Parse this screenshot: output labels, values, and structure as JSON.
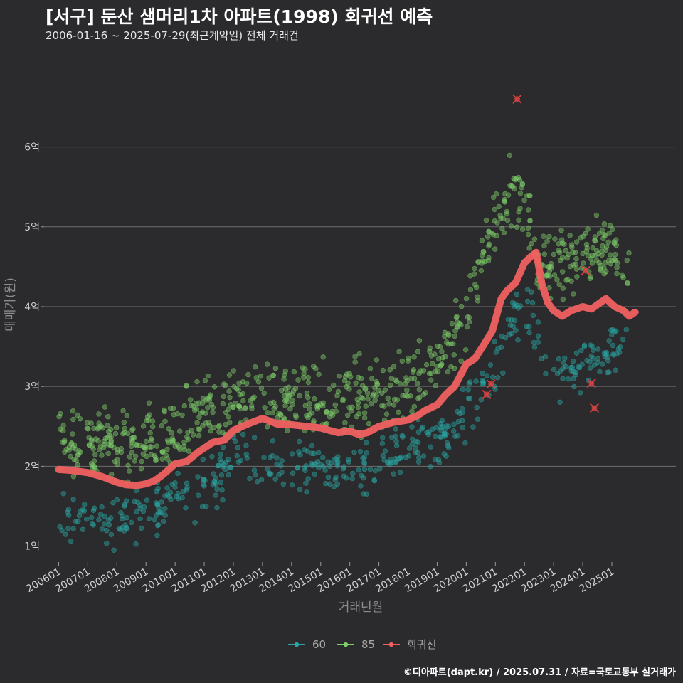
{
  "title": "[서구] 둔산 샘머리1차 아파트(1998) 회귀선 예측",
  "subtitle": "2006-01-16 ~ 2025-07-29(최근계약일) 전체 거래건",
  "caption": "©디아파트(dapt.kr) / 2025.07.31 / 자료=국토교통부 실거래가",
  "chart_data": {
    "type": "scatter",
    "title": "[서구] 둔산 샘머리1차 아파트(1998) 회귀선 예측",
    "subtitle": "2006-01-16 ~ 2025-07-29(최근계약일) 전체 거래건",
    "xlabel": "거래년월",
    "ylabel": "매매가(원)",
    "xlim": [
      2005.5,
      2027.2
    ],
    "ylim": [
      0.8,
      6.95
    ],
    "x_ticks": [
      "200601",
      "200701",
      "200801",
      "200901",
      "201001",
      "201101",
      "201201",
      "201301",
      "201401",
      "201501",
      "201601",
      "201701",
      "201801",
      "201901",
      "202001",
      "202101",
      "202201",
      "202301",
      "202401",
      "202501"
    ],
    "y_ticks": [
      {
        "value": 1,
        "label": "1억"
      },
      {
        "value": 2,
        "label": "2억"
      },
      {
        "value": 3,
        "label": "3억"
      },
      {
        "value": 4,
        "label": "4억"
      },
      {
        "value": 5,
        "label": "5억"
      },
      {
        "value": 6,
        "label": "6억"
      }
    ],
    "grid": true,
    "legend_position": "bottom",
    "series": [
      {
        "name": "60",
        "color": "#2aa7a4",
        "bands": [
          [
            2006.0,
            1.4
          ],
          [
            2007.0,
            1.38
          ],
          [
            2008.0,
            1.3
          ],
          [
            2008.7,
            1.38
          ],
          [
            2009.5,
            1.5
          ],
          [
            2010.5,
            1.65
          ],
          [
            2011.5,
            1.8
          ],
          [
            2012.0,
            2.2
          ],
          [
            2013.0,
            2.0
          ],
          [
            2014.0,
            2.0
          ],
          [
            2015.0,
            2.05
          ],
          [
            2016.0,
            2.02
          ],
          [
            2017.0,
            2.1
          ],
          [
            2018.0,
            2.2
          ],
          [
            2019.0,
            2.35
          ],
          [
            2019.8,
            2.55
          ],
          [
            2020.5,
            3.0
          ],
          [
            2021.0,
            3.3
          ],
          [
            2021.5,
            3.8
          ],
          [
            2022.0,
            4.0
          ],
          [
            2022.5,
            3.6
          ],
          [
            2023.0,
            3.1
          ],
          [
            2024.0,
            3.3
          ],
          [
            2025.0,
            3.4
          ],
          [
            2025.6,
            3.5
          ]
        ],
        "spread": 0.16
      },
      {
        "name": "85",
        "color": "#7fcf6a",
        "bands": [
          [
            2006.0,
            2.35
          ],
          [
            2007.0,
            2.25
          ],
          [
            2008.0,
            2.25
          ],
          [
            2008.7,
            2.3
          ],
          [
            2009.5,
            2.35
          ],
          [
            2010.5,
            2.55
          ],
          [
            2011.5,
            2.7
          ],
          [
            2012.0,
            2.9
          ],
          [
            2013.0,
            2.8
          ],
          [
            2014.0,
            2.8
          ],
          [
            2015.0,
            2.8
          ],
          [
            2016.0,
            2.8
          ],
          [
            2017.0,
            2.9
          ],
          [
            2018.0,
            2.95
          ],
          [
            2019.0,
            3.3
          ],
          [
            2019.8,
            3.7
          ],
          [
            2020.5,
            4.5
          ],
          [
            2021.0,
            5.0
          ],
          [
            2021.5,
            5.4
          ],
          [
            2022.0,
            5.3
          ],
          [
            2022.5,
            4.6
          ],
          [
            2023.0,
            4.5
          ],
          [
            2024.0,
            4.7
          ],
          [
            2025.0,
            4.7
          ],
          [
            2025.6,
            4.5
          ]
        ],
        "spread": 0.22
      }
    ],
    "regression": {
      "name": "회귀선",
      "color": "#f06060",
      "x": [
        2006.0,
        2006.4,
        2007.0,
        2007.5,
        2008.0,
        2008.3,
        2008.7,
        2009.0,
        2009.3,
        2009.6,
        2010.0,
        2010.4,
        2010.8,
        2011.3,
        2011.7,
        2012.0,
        2012.5,
        2013.0,
        2013.5,
        2014.0,
        2014.5,
        2015.0,
        2015.3,
        2015.6,
        2016.0,
        2016.3,
        2016.6,
        2017.0,
        2017.5,
        2018.0,
        2018.3,
        2018.6,
        2019.0,
        2019.3,
        2019.6,
        2020.0,
        2020.3,
        2020.6,
        2020.9,
        2021.2,
        2021.4,
        2021.7,
        2022.0,
        2022.2,
        2022.4,
        2022.6,
        2022.8,
        2023.0,
        2023.3,
        2023.6,
        2024.0,
        2024.3,
        2024.6,
        2024.8,
        2025.1,
        2025.4,
        2025.6,
        2025.8
      ],
      "y": [
        1.96,
        1.95,
        1.92,
        1.87,
        1.8,
        1.77,
        1.76,
        1.78,
        1.82,
        1.9,
        2.03,
        2.06,
        2.18,
        2.3,
        2.33,
        2.45,
        2.53,
        2.6,
        2.53,
        2.52,
        2.5,
        2.48,
        2.45,
        2.42,
        2.44,
        2.4,
        2.42,
        2.5,
        2.55,
        2.58,
        2.63,
        2.7,
        2.77,
        2.9,
        3.0,
        3.28,
        3.35,
        3.52,
        3.7,
        4.1,
        4.2,
        4.3,
        4.55,
        4.62,
        4.68,
        4.28,
        4.05,
        3.95,
        3.88,
        3.95,
        4.0,
        3.97,
        4.05,
        4.1,
        4.0,
        3.95,
        3.88,
        3.93
      ]
    },
    "cancelled_marks": [
      {
        "x": 2021.75,
        "y": 6.6
      },
      {
        "x": 2024.1,
        "y": 4.45
      },
      {
        "x": 2024.3,
        "y": 3.04
      },
      {
        "x": 2024.4,
        "y": 2.73
      },
      {
        "x": 2020.85,
        "y": 3.03
      },
      {
        "x": 2020.7,
        "y": 2.9
      }
    ]
  }
}
